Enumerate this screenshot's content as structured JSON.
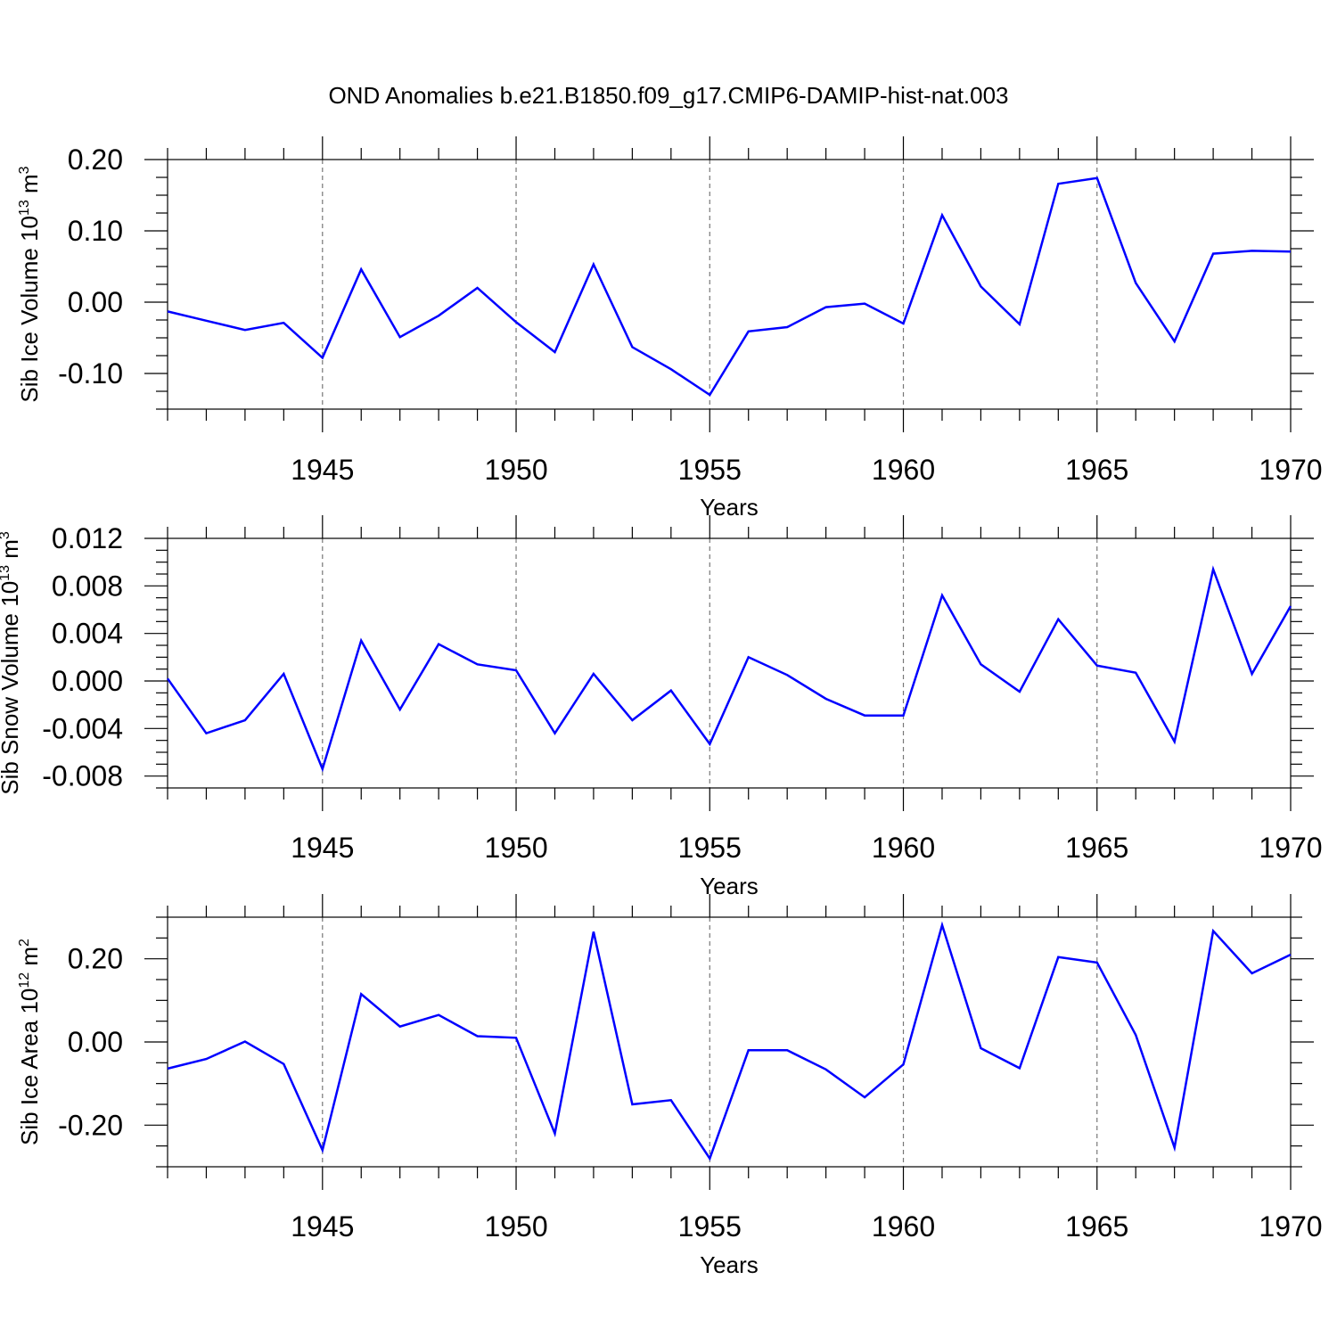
{
  "figure": {
    "title": "OND Anomalies b.e21.B1850.f09_g17.CMIP6-DAMIP-hist-nat.003"
  },
  "chart_data": [
    {
      "type": "line",
      "name": "ice-volume",
      "ylabel": "Sib Ice Volume 10",
      "ylabel_exp": "13",
      "ylabel_unit": "m",
      "ylabel_unit_exp": "3",
      "xlabel": "Years",
      "xlim": [
        1941,
        1970
      ],
      "ylim": [
        -0.15,
        0.2
      ],
      "yticks": [
        -0.1,
        0.0,
        0.1,
        0.2
      ],
      "ytick_labels": [
        "-0.10",
        "0.00",
        "0.10",
        "0.20"
      ],
      "xticks": [
        1945,
        1950,
        1955,
        1960,
        1965,
        1970
      ],
      "xtick_labels": [
        "1945",
        "1950",
        "1955",
        "1960",
        "1965",
        "1970"
      ],
      "grid_x": [
        1945,
        1950,
        1955,
        1960,
        1965
      ],
      "color": "#0000ff",
      "x": [
        1941,
        1942,
        1943,
        1944,
        1945,
        1946,
        1947,
        1948,
        1949,
        1950,
        1951,
        1952,
        1953,
        1954,
        1955,
        1956,
        1957,
        1958,
        1959,
        1960,
        1961,
        1962,
        1963,
        1964,
        1965,
        1966,
        1967,
        1968,
        1969,
        1970
      ],
      "values": [
        -0.013,
        -0.026,
        -0.039,
        -0.029,
        -0.078,
        0.046,
        -0.049,
        -0.019,
        0.02,
        -0.028,
        -0.07,
        0.053,
        -0.063,
        -0.094,
        -0.13,
        -0.041,
        -0.035,
        -0.007,
        -0.002,
        -0.03,
        0.122,
        0.022,
        -0.031,
        0.166,
        0.174,
        0.027,
        -0.055,
        0.068,
        0.072,
        0.071
      ]
    },
    {
      "type": "line",
      "name": "snow-volume",
      "ylabel": "Sib Snow Volume 10",
      "ylabel_exp": "13",
      "ylabel_unit": "m",
      "ylabel_unit_exp": "3",
      "xlabel": "Years",
      "xlim": [
        1941,
        1970
      ],
      "ylim": [
        -0.009,
        0.012
      ],
      "yticks": [
        -0.008,
        -0.004,
        0.0,
        0.004,
        0.008,
        0.012
      ],
      "ytick_labels": [
        "-0.008",
        "-0.004",
        "0.000",
        "0.004",
        "0.008",
        "0.012"
      ],
      "xticks": [
        1945,
        1950,
        1955,
        1960,
        1965,
        1970
      ],
      "xtick_labels": [
        "1945",
        "1950",
        "1955",
        "1960",
        "1965",
        "1970"
      ],
      "grid_x": [
        1945,
        1950,
        1955,
        1960,
        1965
      ],
      "color": "#0000ff",
      "x": [
        1941,
        1942,
        1943,
        1944,
        1945,
        1946,
        1947,
        1948,
        1949,
        1950,
        1951,
        1952,
        1953,
        1954,
        1955,
        1956,
        1957,
        1958,
        1959,
        1960,
        1961,
        1962,
        1963,
        1964,
        1965,
        1966,
        1967,
        1968,
        1969,
        1970
      ],
      "values": [
        0.0002,
        -0.0044,
        -0.0033,
        0.0006,
        -0.0074,
        0.0034,
        -0.0024,
        0.0031,
        0.0014,
        0.0009,
        -0.0044,
        0.0006,
        -0.0033,
        -0.0008,
        -0.0053,
        0.002,
        0.0005,
        -0.0015,
        -0.0029,
        -0.0029,
        0.0072,
        0.0014,
        -0.0009,
        0.0052,
        0.0013,
        0.0007,
        -0.0051,
        0.0094,
        0.0006,
        0.0063
      ]
    },
    {
      "type": "line",
      "name": "ice-area",
      "ylabel": "Sib Ice Area 10",
      "ylabel_exp": "12",
      "ylabel_unit": "m",
      "ylabel_unit_exp": "2",
      "xlabel": "Years",
      "xlim": [
        1941,
        1970
      ],
      "ylim": [
        -0.3,
        0.3
      ],
      "yticks": [
        -0.2,
        0.0,
        0.2
      ],
      "ytick_labels": [
        "-0.20",
        "0.00",
        "0.20"
      ],
      "xticks": [
        1945,
        1950,
        1955,
        1960,
        1965,
        1970
      ],
      "xtick_labels": [
        "1945",
        "1950",
        "1955",
        "1960",
        "1965",
        "1970"
      ],
      "grid_x": [
        1945,
        1950,
        1955,
        1960,
        1965
      ],
      "color": "#0000ff",
      "x": [
        1941,
        1942,
        1943,
        1944,
        1945,
        1946,
        1947,
        1948,
        1949,
        1950,
        1951,
        1952,
        1953,
        1954,
        1955,
        1956,
        1957,
        1958,
        1959,
        1960,
        1961,
        1962,
        1963,
        1964,
        1965,
        1966,
        1967,
        1968,
        1969,
        1970
      ],
      "values": [
        -0.064,
        -0.041,
        0.001,
        -0.053,
        -0.26,
        0.115,
        0.037,
        0.065,
        0.014,
        0.01,
        -0.22,
        0.265,
        -0.15,
        -0.14,
        -0.28,
        -0.02,
        -0.02,
        -0.066,
        -0.133,
        -0.054,
        0.281,
        -0.015,
        -0.063,
        0.204,
        0.191,
        0.017,
        -0.254,
        0.267,
        0.165,
        0.21
      ]
    }
  ]
}
